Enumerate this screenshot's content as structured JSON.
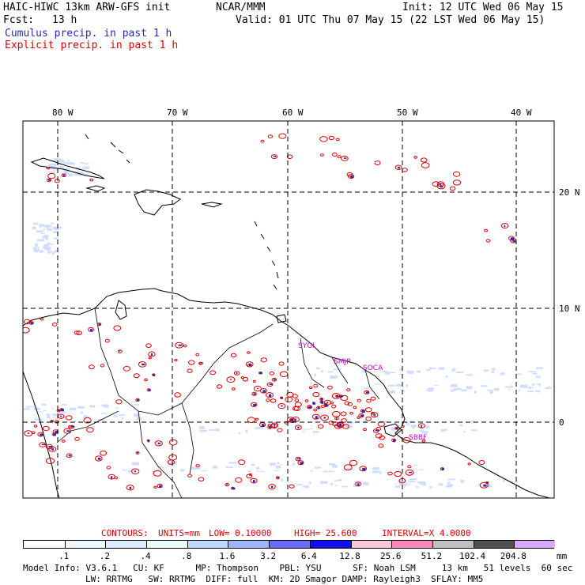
{
  "header": {
    "model": "HAIC-HIWC 13km ARW-GFS init",
    "org": "NCAR/MMM",
    "init": "Init: 12 UTC Wed 06 May 15",
    "fcst_label": "Fcst:",
    "fcst_value": "13 h",
    "valid": "Valid: 01 UTC Thu 07 May 15 (22 LST Wed 06 May 15)",
    "cumulus_legend": "Cumulus precip. in past 1 h",
    "explicit_legend": "Explicit precip. in past 1 h"
  },
  "colors": {
    "cumulus": "#2a2ab0",
    "explicit": "#dd0000",
    "station": "#cc00cc",
    "shade_light": "#c8d8ff"
  },
  "map": {
    "lon_labels": [
      "80 W",
      "70 W",
      "60 W",
      "50 W",
      "40 W"
    ],
    "lat_labels": [
      "20 N",
      "10 N",
      "0"
    ],
    "stations": [
      "SMJP",
      "SOCA",
      "SBBF",
      "SYGI"
    ]
  },
  "contours": {
    "label": "CONTOURS:",
    "units": "UNITS=mm",
    "low": "LOW= 0.10000",
    "high": "HIGH= 25.600",
    "interval": "INTERVAL=X 4.0000"
  },
  "scale": {
    "unit": "mm",
    "values": [
      ".1",
      ".2",
      ".4",
      ".8",
      "1.6",
      "3.2",
      "6.4",
      "12.8",
      "25.6",
      "51.2",
      "102.4",
      "204.8"
    ],
    "colors": [
      "#ffffff",
      "#eef6ff",
      "#dcecff",
      "#e8fffa",
      "#c0d8ff",
      "#9fb4ff",
      "#6a6aff",
      "#1010ee",
      "#ffc8d8",
      "#ff88b8",
      "#c0c0c0",
      "#505050",
      "#d8a8ff"
    ]
  },
  "footer": {
    "line1": "Model Info: V3.6.1   CU: KF      MP: Thompson    PBL: YSU      SF: Noah LSM     13 km   51 levels  60 sec",
    "line2": "LW: RRTMG   SW: RRTMG  DIFF: full  KM: 2D Smagor DAMP: Rayleigh3  SFLAY: MM5"
  }
}
